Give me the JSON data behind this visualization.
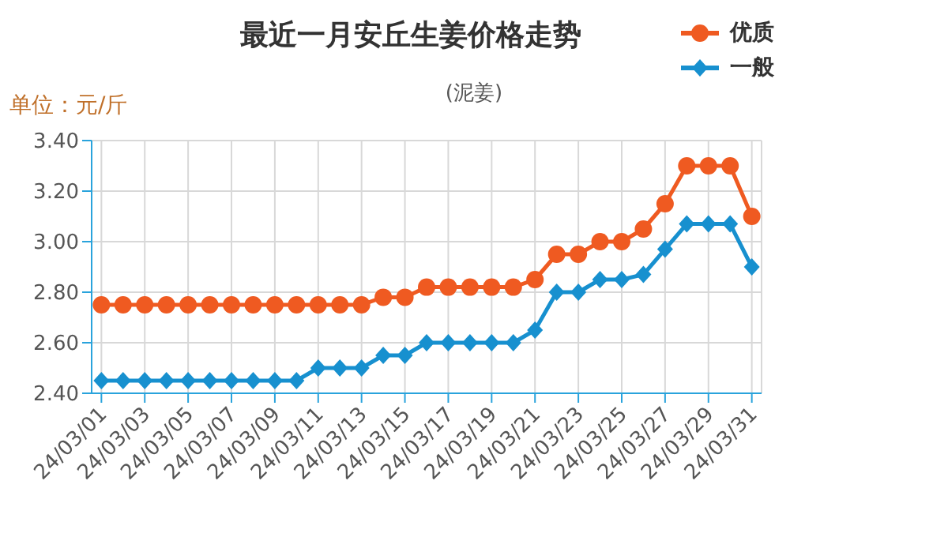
{
  "chart_data": {
    "type": "line",
    "title": "最近一月安丘生姜价格走势",
    "subtitle": "(泥姜)",
    "ylabel": "单位：元/斤",
    "categories": [
      "24/03/01",
      null,
      "24/03/03",
      null,
      "24/03/05",
      null,
      "24/03/07",
      null,
      "24/03/09",
      null,
      "24/03/11",
      null,
      "24/03/13",
      null,
      "24/03/15",
      null,
      "24/03/17",
      null,
      "24/03/19",
      null,
      "24/03/21",
      null,
      "24/03/23",
      null,
      "24/03/25",
      null,
      "24/03/27",
      null,
      "24/03/29",
      null,
      "24/03/31"
    ],
    "series": [
      {
        "name": "优质",
        "color": "#ef5a21",
        "marker": "circle",
        "values": [
          2.75,
          2.75,
          2.75,
          2.75,
          2.75,
          2.75,
          2.75,
          2.75,
          2.75,
          2.75,
          2.75,
          2.75,
          2.75,
          2.78,
          2.78,
          2.82,
          2.82,
          2.82,
          2.82,
          2.82,
          2.85,
          2.95,
          2.95,
          3.0,
          3.0,
          3.05,
          3.15,
          3.3,
          3.3,
          3.3,
          3.1
        ]
      },
      {
        "name": "一般",
        "color": "#1790cf",
        "marker": "diamond",
        "values": [
          2.45,
          2.45,
          2.45,
          2.45,
          2.45,
          2.45,
          2.45,
          2.45,
          2.45,
          2.45,
          2.5,
          2.5,
          2.5,
          2.55,
          2.55,
          2.6,
          2.6,
          2.6,
          2.6,
          2.6,
          2.65,
          2.8,
          2.8,
          2.85,
          2.85,
          2.87,
          2.97,
          3.07,
          3.07,
          3.07,
          2.9
        ]
      }
    ],
    "ylim": [
      2.4,
      3.4
    ],
    "yticks": [
      {
        "value": 2.4,
        "label": "2.40"
      },
      {
        "value": 2.6,
        "label": "2.60"
      },
      {
        "value": 2.8,
        "label": "2.80"
      },
      {
        "value": 3.0,
        "label": "3.00"
      },
      {
        "value": 3.2,
        "label": "3.20"
      },
      {
        "value": 3.4,
        "label": "3.40"
      }
    ],
    "grid": true,
    "legend": "top right",
    "line_style": "solid"
  }
}
